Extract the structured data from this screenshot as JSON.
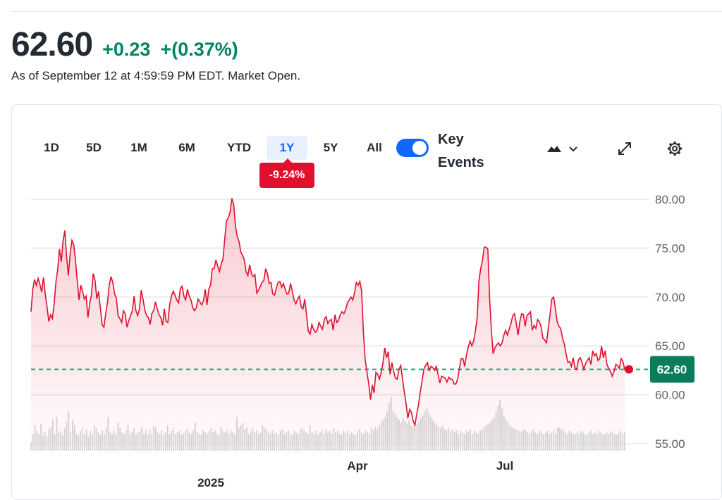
{
  "quote": {
    "price": "62.60",
    "change": "+0.23",
    "change_percent": "+(0.37%)",
    "as_of": "As of September 12 at 4:59:59 PM EDT. Market Open."
  },
  "ranges": [
    "1D",
    "5D",
    "1M",
    "6M",
    "YTD",
    "1Y",
    "5Y",
    "All"
  ],
  "active_range": "1Y",
  "range_change_badge": "-9.24%",
  "key_events": {
    "label": "Key Events",
    "enabled": true
  },
  "icons": [
    "mountain-chart-icon",
    "chevron-down-icon",
    "expand-icon",
    "settings-gear-icon"
  ],
  "colors": {
    "line": "#e0102f",
    "positive": "#008463",
    "badge": "#e0102f",
    "active_range": "#0f69ff",
    "toggle": "#0f69ff",
    "previous_close_line": "#3a9a82",
    "volume": "#d3d5d8"
  },
  "chart_data": {
    "type": "area",
    "ylim": [
      54,
      81
    ],
    "y_ticks": [
      "80.00",
      "75.00",
      "70.00",
      "65.00",
      "60.00",
      "55.00"
    ],
    "y_tick_values": [
      80,
      75,
      70,
      65,
      60,
      55
    ],
    "x_labels": [
      "Apr",
      "Jul"
    ],
    "year_label": "2025",
    "last_value_label": "62.60",
    "previous_close": 62.6,
    "grid": true,
    "series": [
      {
        "values": [
          68.5,
          70.8,
          71.8,
          71.2,
          71.9,
          71.3,
          70.5,
          72.0,
          70.3,
          69.0,
          67.5,
          68.2,
          67.8,
          69.3,
          71.5,
          72.8,
          74.9,
          73.6,
          75.7,
          76.8,
          74.2,
          72.2,
          74.4,
          75.8,
          75.4,
          73.8,
          71.7,
          69.7,
          71.2,
          70.6,
          69.8,
          70.1,
          67.9,
          69.3,
          70.2,
          72.4,
          71.7,
          69.8,
          70.6,
          68.9,
          67.2,
          66.9,
          68.3,
          69.4,
          71.2,
          72.1,
          71.5,
          70.3,
          69.9,
          68.1,
          67.8,
          67.4,
          68.6,
          68.3,
          66.9,
          67.6,
          68.1,
          68.6,
          70.1,
          68.6,
          68.1,
          68.8,
          70.7,
          69.8,
          68.7,
          68.1,
          67.9,
          67.2,
          68.3,
          68.6,
          69.5,
          68.8,
          68.2,
          67.9,
          67.1,
          68.8,
          67.5,
          67.4,
          69.2,
          70.1,
          70.6,
          70.2,
          69.7,
          69.4,
          70.9,
          71.1,
          70.1,
          69.7,
          70.8,
          70.1,
          69.7,
          68.9,
          68.6,
          68.9,
          69.8,
          69.5,
          69.2,
          69.6,
          70.8,
          69.2,
          70.8,
          71.2,
          72.9,
          72.9,
          73.8,
          73.2,
          72.6,
          73.4,
          73.9,
          76.0,
          77.8,
          78.1,
          78.7,
          80.1,
          79.5,
          77.3,
          76.2,
          75.7,
          74.6,
          74.3,
          73.8,
          72.6,
          72.2,
          73.3,
          72.4,
          72.1,
          72.3,
          70.4,
          70.7,
          71.1,
          71.5,
          71.7,
          72.9,
          72.4,
          71.4,
          71.5,
          70.3,
          70.2,
          70.9,
          71.5,
          71.6,
          71.0,
          71.4,
          70.8,
          70.3,
          70.4,
          71.4,
          70.6,
          69.7,
          69.3,
          69.8,
          70.1,
          69.0,
          68.8,
          69.8,
          68.2,
          66.5,
          66.2,
          67.2,
          66.7,
          66.4,
          66.6,
          67.4,
          67.0,
          66.7,
          67.7,
          68.0,
          67.3,
          67.6,
          67.7,
          66.6,
          68.2,
          67.4,
          67.6,
          68.2,
          68.5,
          68.3,
          68.7,
          69.4,
          69.7,
          70.0,
          69.7,
          70.4,
          71.5,
          71.2,
          71.6,
          70.6,
          66.4,
          63.6,
          62.3,
          61.1,
          59.5,
          61.0,
          60.2,
          62.3,
          62.1,
          61.6,
          62.3,
          63.2,
          64.8,
          63.8,
          64.4,
          62.1,
          63.3,
          62.4,
          61.7,
          61.6,
          62.6,
          63.0,
          61.6,
          60.3,
          59.1,
          57.6,
          58.5,
          58.2,
          57.3,
          56.9,
          58.0,
          59.0,
          60.3,
          61.4,
          62.6,
          63.0,
          63.3,
          62.5,
          62.9,
          62.8,
          62.5,
          62.9,
          62.1,
          61.2,
          61.9,
          61.8,
          61.7,
          61.3,
          61.8,
          61.6,
          61.6,
          61.1,
          61.1,
          61.6,
          62.7,
          63.7,
          63.7,
          62.9,
          64.1,
          64.9,
          65.5,
          65.0,
          65.5,
          66.5,
          67.9,
          71.7,
          72.9,
          73.8,
          75.1,
          75.1,
          74.9,
          69.9,
          66.6,
          64.2,
          64.8,
          65.1,
          65.3,
          65.0,
          65.3,
          66.1,
          66.6,
          66.1,
          66.7,
          67.3,
          68.1,
          68.3,
          67.3,
          66.1,
          67.5,
          68.3,
          68.2,
          67.0,
          68.1,
          68.3,
          68.5,
          66.6,
          67.1,
          66.8,
          67.7,
          67.5,
          66.9,
          65.8,
          65.6,
          65.3,
          66.8,
          68.2,
          69.8,
          70.0,
          68.8,
          67.5,
          67.0,
          66.8,
          65.8,
          65.2,
          64.2,
          63.3,
          63.4,
          62.9,
          63.8,
          62.8,
          62.6,
          63.6,
          63.8,
          63.3,
          62.6,
          63.2,
          63.5,
          63.8,
          63.1,
          64.5,
          64.0,
          64.2,
          63.5,
          63.7,
          65.0,
          63.8,
          64.5,
          63.1,
          62.7,
          62.4,
          61.9,
          62.4,
          63.1,
          63.0,
          62.7,
          63.7,
          63.4,
          62.6
        ]
      }
    ],
    "volume_relative": [
      0.15,
      0.3,
      0.45,
      0.35,
      0.3,
      0.48,
      0.28,
      0.34,
      0.26,
      0.38,
      0.42,
      0.55,
      0.3,
      0.6,
      0.32,
      0.35,
      0.28,
      0.4,
      0.5,
      0.7,
      0.33,
      0.55,
      0.45,
      0.3,
      0.27,
      0.35,
      0.42,
      0.3,
      0.38,
      0.25,
      0.35,
      0.3,
      0.45,
      0.4,
      0.32,
      0.28,
      0.36,
      0.3,
      0.42,
      0.6,
      0.33,
      0.3,
      0.35,
      0.28,
      0.5,
      0.4,
      0.32,
      0.3,
      0.36,
      0.45,
      0.3,
      0.33,
      0.4,
      0.28,
      0.32,
      0.35,
      0.42,
      0.3,
      0.36,
      0.28,
      0.38,
      0.3,
      0.44,
      0.4,
      0.33,
      0.3,
      0.36,
      0.28,
      0.32,
      0.45,
      0.3,
      0.35,
      0.4,
      0.3,
      0.33,
      0.36,
      0.28,
      0.3,
      0.35,
      0.4,
      0.32,
      0.3,
      0.36,
      0.5,
      0.33,
      0.3,
      0.28,
      0.36,
      0.32,
      0.3,
      0.35,
      0.4,
      0.33,
      0.36,
      0.3,
      0.28,
      0.42,
      0.35,
      0.32,
      0.38,
      0.3,
      0.36,
      0.33,
      0.3,
      0.6,
      0.4,
      0.45,
      0.5,
      0.38,
      0.42,
      0.3,
      0.35,
      0.4,
      0.33,
      0.36,
      0.3,
      0.32,
      0.45,
      0.4,
      0.38,
      0.33,
      0.3,
      0.36,
      0.3,
      0.32,
      0.28,
      0.35,
      0.38,
      0.3,
      0.33,
      0.36,
      0.3,
      0.28,
      0.35,
      0.32,
      0.3,
      0.38,
      0.4,
      0.36,
      0.33,
      0.3,
      0.45,
      0.32,
      0.3,
      0.35,
      0.28,
      0.33,
      0.36,
      0.3,
      0.38,
      0.32,
      0.35,
      0.3,
      0.4,
      0.33,
      0.36,
      0.3,
      0.28,
      0.35,
      0.32,
      0.36,
      0.3,
      0.33,
      0.3,
      0.28,
      0.35,
      0.38,
      0.32,
      0.3,
      0.36,
      0.33,
      0.3,
      0.4,
      0.36,
      0.42,
      0.38,
      0.45,
      0.5,
      0.55,
      0.6,
      0.7,
      0.85,
      0.95,
      0.7,
      0.65,
      0.6,
      0.55,
      0.5,
      0.58,
      0.52,
      0.48,
      0.55,
      0.45,
      0.42,
      0.5,
      0.46,
      0.52,
      0.58,
      0.62,
      0.7,
      0.75,
      0.68,
      0.6,
      0.55,
      0.5,
      0.46,
      0.42,
      0.4,
      0.45,
      0.38,
      0.36,
      0.4,
      0.35,
      0.38,
      0.33,
      0.36,
      0.3,
      0.35,
      0.32,
      0.3,
      0.36,
      0.33,
      0.38,
      0.3,
      0.35,
      0.32,
      0.3,
      0.36,
      0.38,
      0.42,
      0.45,
      0.48,
      0.5,
      0.55,
      0.6,
      0.7,
      0.8,
      0.9,
      0.75,
      0.62,
      0.55,
      0.5,
      0.45,
      0.42,
      0.4,
      0.38,
      0.36,
      0.35,
      0.33,
      0.38,
      0.36,
      0.33,
      0.3,
      0.35,
      0.38,
      0.32,
      0.3,
      0.36,
      0.33,
      0.3,
      0.32,
      0.35,
      0.3,
      0.33,
      0.36,
      0.3,
      0.4,
      0.42,
      0.38,
      0.36,
      0.33,
      0.3,
      0.35,
      0.32,
      0.3,
      0.28,
      0.33,
      0.3,
      0.35,
      0.32,
      0.3,
      0.28,
      0.33,
      0.36,
      0.3,
      0.32,
      0.3,
      0.35,
      0.33,
      0.28,
      0.3,
      0.32,
      0.3,
      0.35,
      0.33,
      0.3,
      0.28,
      0.32,
      0.35,
      0.3,
      0.33
    ]
  }
}
